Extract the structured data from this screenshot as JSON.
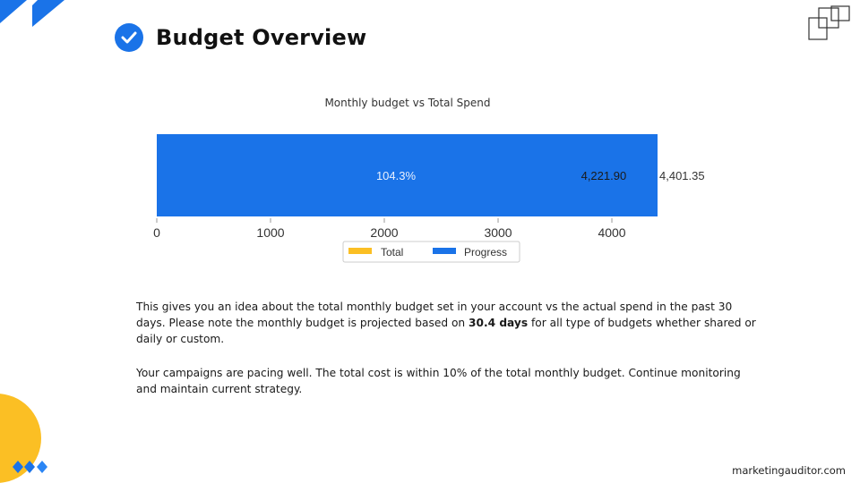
{
  "page": {
    "title": "Budget Overview",
    "footer": "marketingauditor.com"
  },
  "chart_title": "Monthly budget vs Total Spend",
  "chart_data": {
    "type": "bar",
    "orientation": "horizontal",
    "series": [
      {
        "name": "Total",
        "value": 4221.9,
        "label": "4,221.90",
        "color": "#fbbf24"
      },
      {
        "name": "Progress",
        "value": 4401.35,
        "label": "4,401.35",
        "color": "#1a73e8"
      }
    ],
    "percent_label": "104.3%",
    "xlim": [
      0,
      4401.35
    ],
    "xticks": [
      0,
      1000,
      2000,
      3000,
      4000
    ],
    "xtick_labels": [
      "0",
      "1000",
      "2000",
      "3000",
      "4000"
    ],
    "legend_position": "bottom"
  },
  "description": {
    "p1_before": "This gives you an idea about the total monthly budget set in your account vs the actual spend in the past 30 days. Please note the monthly budget is projected based on ",
    "p1_bold": "30.4 days",
    "p1_after": " for all type of budgets whether shared or daily or custom.",
    "p2": "Your campaigns are pacing well. The total cost is within 10% of the total monthly budget. Continue monitoring and maintain current strategy."
  },
  "colors": {
    "accent_blue": "#1a73e8",
    "accent_yellow": "#fbbf24"
  }
}
